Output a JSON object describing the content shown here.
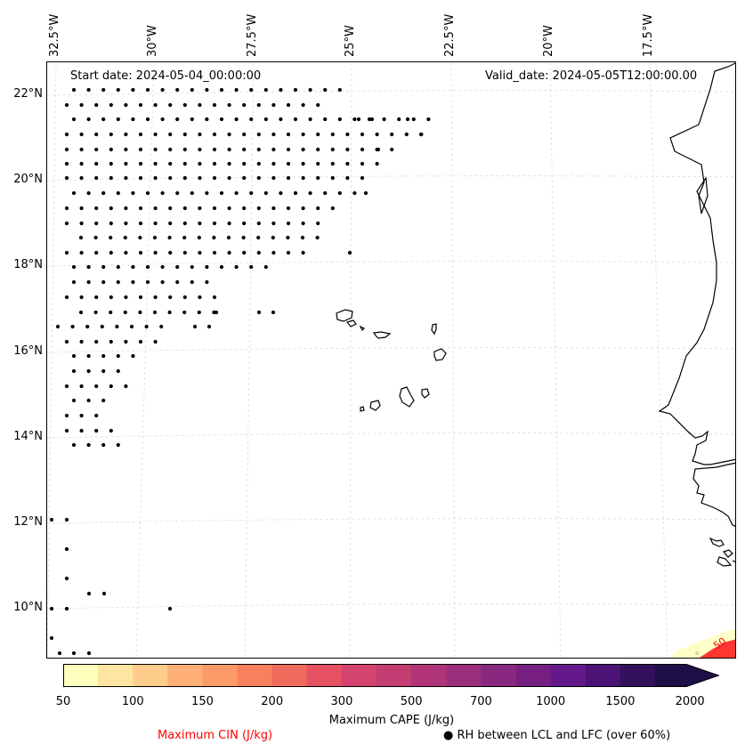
{
  "map": {
    "start_date": "Start date: 2024-05-04_00:00:00",
    "valid_date": "Valid_date: 2024-05-05T12:00:00.00",
    "lon_labels": [
      "32.5°W",
      "30°W",
      "27.5°W",
      "25°W",
      "22.5°W",
      "20°W",
      "17.5°W"
    ],
    "lat_labels": [
      "22°N",
      "20°N",
      "18°N",
      "16°N",
      "14°N",
      "12°N",
      "10°N"
    ],
    "coast_color": "#000000",
    "grid_color": "#dcdcdc",
    "dot_color": "#000000"
  },
  "colorbar": {
    "tick_labels": [
      "50",
      "100",
      "150",
      "200",
      "300",
      "500",
      "700",
      "1000",
      "1500",
      "2000"
    ],
    "colors": [
      "#fefebd",
      "#fee6a2",
      "#fecd8b",
      "#feb078",
      "#fc9b68",
      "#f9805d",
      "#f06a5c",
      "#e55063",
      "#d4426e",
      "#c33c72",
      "#b03477",
      "#9c2e7e",
      "#892881",
      "#771f81",
      "#63198a",
      "#4c1377",
      "#33105b",
      "#1e0f47"
    ],
    "title": "Maximum CAPE (J/kg)",
    "cin_label": "Maximum CIN (J/kg)",
    "cin_color": "#ff0000",
    "rh_label": "RH between LCL and LFC (over 60%)"
  }
}
